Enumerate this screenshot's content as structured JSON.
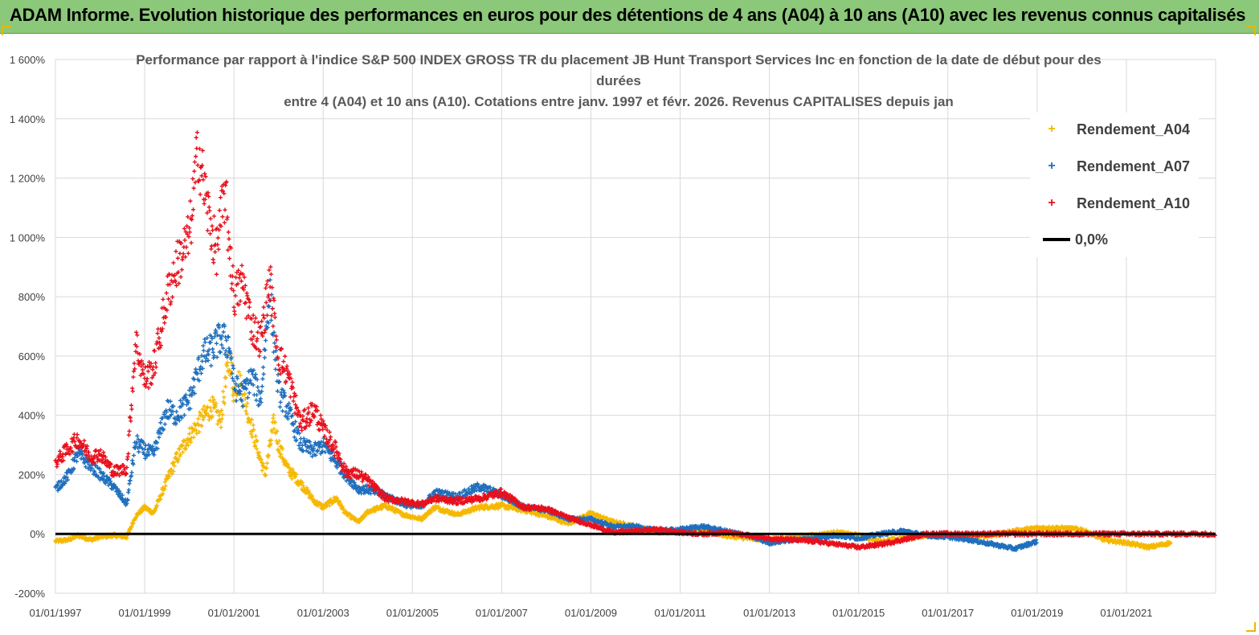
{
  "header": {
    "title": "ADAM Informe. Evolution historique des performances en euros pour des détentions de 4 ans (A04) à 10 ans (A10) avec les revenus connus capitalisés"
  },
  "colors": {
    "banner": "#8cc87a",
    "a04": "#f5b800",
    "a07": "#1f6fbd",
    "a10": "#e8101c",
    "zero": "#000000",
    "grid": "#d9d9d9"
  },
  "chart_data": {
    "type": "scatter",
    "title_lines": [
      "Performance par rapport à l'indice S&P 500 INDEX GROSS TR  du placement JB Hunt Transport Services Inc en fonction de la date de début pour des",
      "durées",
      "entre 4 (A04) et 10 ans (A10). Cotations entre janv. 1997 et févr. 2026. Revenus CAPITALISES depuis jan"
    ],
    "y_axis": {
      "min": -200,
      "max": 1600,
      "step": 200,
      "tick_labels": [
        "-200%",
        "0%",
        "200%",
        "400%",
        "600%",
        "800%",
        "1 000%",
        "1 200%",
        "1 400%",
        "1 600%"
      ]
    },
    "x_axis": {
      "min": 1997.0,
      "max": 2023.0,
      "tick_labels": [
        "01/01/1997",
        "01/01/1999",
        "01/01/2001",
        "01/01/2003",
        "01/01/2005",
        "01/01/2007",
        "01/01/2009",
        "01/01/2011",
        "01/01/2013",
        "01/01/2015",
        "01/01/2017",
        "01/01/2019",
        "01/01/2021"
      ],
      "tick_values": [
        1997,
        1999,
        2001,
        2003,
        2005,
        2007,
        2009,
        2011,
        2013,
        2015,
        2017,
        2019,
        2021
      ],
      "gridlines": [
        1997,
        1999,
        2001,
        2003,
        2005,
        2007,
        2009,
        2011,
        2013,
        2015,
        2017,
        2019,
        2021,
        2023
      ]
    },
    "series": [
      {
        "name": "Rendement_A04",
        "marker": "+",
        "points": [
          [
            1997.0,
            -25
          ],
          [
            1997.3,
            -20
          ],
          [
            1997.5,
            -5
          ],
          [
            1997.8,
            -20
          ],
          [
            1998.0,
            -10
          ],
          [
            1998.3,
            -5
          ],
          [
            1998.6,
            -10
          ],
          [
            1998.8,
            60
          ],
          [
            1999.0,
            90
          ],
          [
            1999.2,
            70
          ],
          [
            1999.5,
            180
          ],
          [
            1999.7,
            250
          ],
          [
            2000.0,
            330
          ],
          [
            2000.3,
            390
          ],
          [
            2000.5,
            430
          ],
          [
            2000.7,
            380
          ],
          [
            2000.9,
            600
          ],
          [
            2001.0,
            470
          ],
          [
            2001.1,
            520
          ],
          [
            2001.3,
            420
          ],
          [
            2001.5,
            300
          ],
          [
            2001.7,
            200
          ],
          [
            2001.9,
            380
          ],
          [
            2002.0,
            300
          ],
          [
            2002.2,
            220
          ],
          [
            2002.5,
            170
          ],
          [
            2002.8,
            110
          ],
          [
            2003.0,
            90
          ],
          [
            2003.3,
            120
          ],
          [
            2003.5,
            70
          ],
          [
            2003.8,
            40
          ],
          [
            2004.0,
            75
          ],
          [
            2004.4,
            95
          ],
          [
            2004.8,
            65
          ],
          [
            2005.2,
            50
          ],
          [
            2005.5,
            90
          ],
          [
            2006.0,
            65
          ],
          [
            2006.5,
            90
          ],
          [
            2007.0,
            95
          ],
          [
            2007.5,
            80
          ],
          [
            2008.0,
            60
          ],
          [
            2008.5,
            35
          ],
          [
            2009.0,
            70
          ],
          [
            2009.5,
            40
          ],
          [
            2010.0,
            25
          ],
          [
            2010.5,
            5
          ],
          [
            2011.0,
            10
          ],
          [
            2011.5,
            15
          ],
          [
            2012.0,
            -5
          ],
          [
            2012.5,
            -15
          ],
          [
            2013.0,
            -20
          ],
          [
            2013.5,
            -10
          ],
          [
            2014.0,
            -5
          ],
          [
            2014.5,
            5
          ],
          [
            2015.0,
            -5
          ],
          [
            2015.5,
            -25
          ],
          [
            2016.0,
            -15
          ],
          [
            2016.5,
            -5
          ],
          [
            2017.0,
            -10
          ],
          [
            2017.5,
            -8
          ],
          [
            2018.0,
            -5
          ],
          [
            2018.5,
            10
          ],
          [
            2019.0,
            20
          ],
          [
            2019.5,
            20
          ],
          [
            2020.0,
            15
          ],
          [
            2020.5,
            -20
          ],
          [
            2021.0,
            -30
          ],
          [
            2021.5,
            -45
          ],
          [
            2022.0,
            -30
          ]
        ]
      },
      {
        "name": "Rendement_A07",
        "marker": "+",
        "points": [
          [
            1997.0,
            150
          ],
          [
            1997.3,
            200
          ],
          [
            1997.5,
            270
          ],
          [
            1997.8,
            230
          ],
          [
            1998.0,
            200
          ],
          [
            1998.3,
            160
          ],
          [
            1998.6,
            100
          ],
          [
            1998.8,
            310
          ],
          [
            1999.0,
            280
          ],
          [
            1999.2,
            270
          ],
          [
            1999.5,
            420
          ],
          [
            1999.7,
            400
          ],
          [
            2000.0,
            450
          ],
          [
            2000.3,
            600
          ],
          [
            2000.5,
            620
          ],
          [
            2000.7,
            660
          ],
          [
            2000.9,
            640
          ],
          [
            2001.0,
            500
          ],
          [
            2001.2,
            470
          ],
          [
            2001.4,
            530
          ],
          [
            2001.6,
            450
          ],
          [
            2001.8,
            820
          ],
          [
            2002.0,
            480
          ],
          [
            2002.2,
            420
          ],
          [
            2002.5,
            300
          ],
          [
            2002.8,
            280
          ],
          [
            2003.0,
            300
          ],
          [
            2003.3,
            240
          ],
          [
            2003.5,
            200
          ],
          [
            2003.8,
            150
          ],
          [
            2004.0,
            150
          ],
          [
            2004.4,
            130
          ],
          [
            2004.8,
            100
          ],
          [
            2005.2,
            90
          ],
          [
            2005.5,
            140
          ],
          [
            2006.0,
            125
          ],
          [
            2006.5,
            160
          ],
          [
            2007.0,
            130
          ],
          [
            2007.5,
            90
          ],
          [
            2008.0,
            80
          ],
          [
            2008.5,
            50
          ],
          [
            2009.0,
            50
          ],
          [
            2009.5,
            25
          ],
          [
            2010.0,
            25
          ],
          [
            2010.5,
            10
          ],
          [
            2011.0,
            15
          ],
          [
            2011.5,
            25
          ],
          [
            2012.0,
            10
          ],
          [
            2012.5,
            -5
          ],
          [
            2013.0,
            -30
          ],
          [
            2013.5,
            -20
          ],
          [
            2014.0,
            -15
          ],
          [
            2014.5,
            -5
          ],
          [
            2015.0,
            -15
          ],
          [
            2015.5,
            0
          ],
          [
            2016.0,
            10
          ],
          [
            2016.5,
            -5
          ],
          [
            2017.0,
            -10
          ],
          [
            2017.5,
            -20
          ],
          [
            2018.0,
            -35
          ],
          [
            2018.5,
            -50
          ],
          [
            2019.0,
            -25
          ]
        ]
      },
      {
        "name": "Rendement_A10",
        "marker": "+",
        "points": [
          [
            1997.0,
            240
          ],
          [
            1997.3,
            290
          ],
          [
            1997.5,
            320
          ],
          [
            1997.8,
            260
          ],
          [
            1998.0,
            270
          ],
          [
            1998.3,
            210
          ],
          [
            1998.6,
            220
          ],
          [
            1998.8,
            650
          ],
          [
            1999.0,
            520
          ],
          [
            1999.2,
            560
          ],
          [
            1999.5,
            800
          ],
          [
            1999.7,
            900
          ],
          [
            2000.0,
            1000
          ],
          [
            2000.2,
            1300
          ],
          [
            2000.4,
            1100
          ],
          [
            2000.6,
            950
          ],
          [
            2000.8,
            1150
          ],
          [
            2001.0,
            800
          ],
          [
            2001.2,
            850
          ],
          [
            2001.4,
            700
          ],
          [
            2001.6,
            650
          ],
          [
            2001.8,
            860
          ],
          [
            2002.0,
            600
          ],
          [
            2002.2,
            540
          ],
          [
            2002.5,
            370
          ],
          [
            2002.8,
            420
          ],
          [
            2003.0,
            350
          ],
          [
            2003.3,
            280
          ],
          [
            2003.5,
            210
          ],
          [
            2003.8,
            200
          ],
          [
            2004.0,
            180
          ],
          [
            2004.4,
            120
          ],
          [
            2004.8,
            110
          ],
          [
            2005.2,
            100
          ],
          [
            2005.5,
            120
          ],
          [
            2006.0,
            110
          ],
          [
            2006.5,
            120
          ],
          [
            2007.0,
            140
          ],
          [
            2007.5,
            90
          ],
          [
            2008.0,
            85
          ],
          [
            2008.5,
            55
          ],
          [
            2009.0,
            30
          ],
          [
            2009.5,
            5
          ],
          [
            2010.0,
            10
          ],
          [
            2010.5,
            15
          ],
          [
            2011.0,
            5
          ],
          [
            2011.5,
            0
          ],
          [
            2012.0,
            5
          ],
          [
            2012.5,
            -5
          ],
          [
            2013.0,
            -15
          ],
          [
            2013.5,
            -20
          ],
          [
            2014.0,
            -25
          ],
          [
            2014.5,
            -35
          ],
          [
            2015.0,
            -45
          ],
          [
            2015.5,
            -35
          ],
          [
            2016.0,
            -20
          ],
          [
            2016.5,
            0
          ],
          [
            2017.0,
            0
          ],
          [
            2017.5,
            0
          ],
          [
            2018.0,
            0
          ],
          [
            2019.0,
            0
          ],
          [
            2020.0,
            0
          ],
          [
            2021.0,
            0
          ],
          [
            2022.0,
            0
          ],
          [
            2023.0,
            0
          ]
        ]
      }
    ],
    "reference_line": {
      "name": "0,0%",
      "y": 0
    },
    "legend_position": "top-right"
  },
  "legend": {
    "a04": "Rendement_A04",
    "a07": "Rendement_A07",
    "a10": "Rendement_A10",
    "zero": "0,0%",
    "marker_glyph": "+"
  }
}
